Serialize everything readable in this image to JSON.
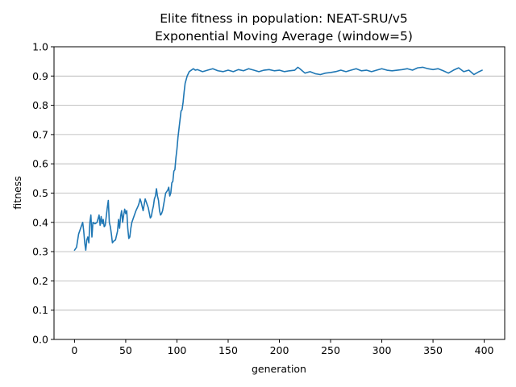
{
  "chart_data": {
    "type": "line",
    "title": "Elite fitness in population: NEAT-SRU/v5",
    "subtitle": "Exponential Moving Average (window=5)",
    "xlabel": "generation",
    "ylabel": "fitness",
    "xlim": [
      -20,
      420
    ],
    "ylim": [
      0.0,
      1.0
    ],
    "xticks": [
      0,
      50,
      100,
      150,
      200,
      250,
      300,
      350,
      400
    ],
    "yticks": [
      0.0,
      0.1,
      0.2,
      0.3,
      0.4,
      0.5,
      0.6,
      0.7,
      0.8,
      0.9,
      1.0
    ],
    "xtick_labels": [
      "0",
      "50",
      "100",
      "150",
      "200",
      "250",
      "300",
      "350",
      "400"
    ],
    "ytick_labels": [
      "0.0",
      "0.1",
      "0.2",
      "0.3",
      "0.4",
      "0.5",
      "0.6",
      "0.7",
      "0.8",
      "0.9",
      "1.0"
    ],
    "grid": "y-major",
    "line_color": "#1f77b4",
    "series": [
      {
        "x": [
          0,
          2,
          4,
          6,
          8,
          9,
          10,
          11,
          12,
          13,
          14,
          15,
          16,
          17,
          18,
          20,
          22,
          24,
          25,
          26,
          27,
          28,
          29,
          30,
          31,
          32,
          33,
          34,
          35,
          36,
          37,
          38,
          40,
          42,
          43,
          44,
          45,
          46,
          47,
          48,
          49,
          50,
          51,
          52,
          53,
          54,
          55,
          56,
          58,
          60,
          62,
          63,
          64,
          65,
          66,
          67,
          68,
          69,
          70,
          72,
          74,
          75,
          76,
          77,
          78,
          79,
          80,
          81,
          82,
          83,
          84,
          85,
          86,
          87,
          88,
          89,
          90,
          91,
          92,
          93,
          94,
          95,
          96,
          97,
          98,
          99,
          100,
          101,
          102,
          103,
          104,
          105,
          106,
          107,
          108,
          110,
          112,
          114,
          116,
          118,
          120,
          125,
          130,
          135,
          140,
          145,
          150,
          155,
          160,
          165,
          170,
          175,
          180,
          185,
          190,
          195,
          200,
          205,
          210,
          215,
          218,
          220,
          225,
          230,
          235,
          240,
          245,
          250,
          255,
          260,
          265,
          270,
          275,
          280,
          285,
          290,
          295,
          300,
          305,
          310,
          315,
          320,
          325,
          330,
          335,
          340,
          345,
          350,
          355,
          360,
          365,
          370,
          375,
          380,
          385,
          390,
          395,
          398
        ],
        "y": [
          0.305,
          0.315,
          0.36,
          0.38,
          0.4,
          0.37,
          0.33,
          0.305,
          0.34,
          0.35,
          0.33,
          0.4,
          0.425,
          0.35,
          0.4,
          0.395,
          0.4,
          0.425,
          0.39,
          0.42,
          0.395,
          0.41,
          0.385,
          0.39,
          0.42,
          0.45,
          0.475,
          0.4,
          0.385,
          0.36,
          0.33,
          0.335,
          0.34,
          0.37,
          0.41,
          0.38,
          0.42,
          0.44,
          0.4,
          0.425,
          0.445,
          0.43,
          0.44,
          0.38,
          0.345,
          0.35,
          0.38,
          0.4,
          0.42,
          0.44,
          0.455,
          0.465,
          0.48,
          0.47,
          0.455,
          0.44,
          0.46,
          0.48,
          0.47,
          0.45,
          0.415,
          0.42,
          0.44,
          0.455,
          0.48,
          0.49,
          0.515,
          0.49,
          0.475,
          0.44,
          0.425,
          0.43,
          0.44,
          0.46,
          0.48,
          0.5,
          0.505,
          0.51,
          0.52,
          0.49,
          0.5,
          0.535,
          0.54,
          0.575,
          0.58,
          0.62,
          0.65,
          0.69,
          0.72,
          0.75,
          0.78,
          0.785,
          0.81,
          0.845,
          0.875,
          0.9,
          0.915,
          0.92,
          0.925,
          0.92,
          0.922,
          0.915,
          0.92,
          0.925,
          0.918,
          0.915,
          0.92,
          0.915,
          0.922,
          0.918,
          0.925,
          0.92,
          0.915,
          0.92,
          0.922,
          0.918,
          0.92,
          0.915,
          0.918,
          0.92,
          0.93,
          0.925,
          0.91,
          0.915,
          0.908,
          0.905,
          0.91,
          0.912,
          0.915,
          0.92,
          0.915,
          0.92,
          0.925,
          0.918,
          0.92,
          0.915,
          0.92,
          0.925,
          0.92,
          0.918,
          0.92,
          0.922,
          0.925,
          0.92,
          0.928,
          0.93,
          0.925,
          0.922,
          0.925,
          0.918,
          0.91,
          0.92,
          0.928,
          0.915,
          0.92,
          0.905,
          0.915,
          0.92
        ]
      }
    ]
  }
}
